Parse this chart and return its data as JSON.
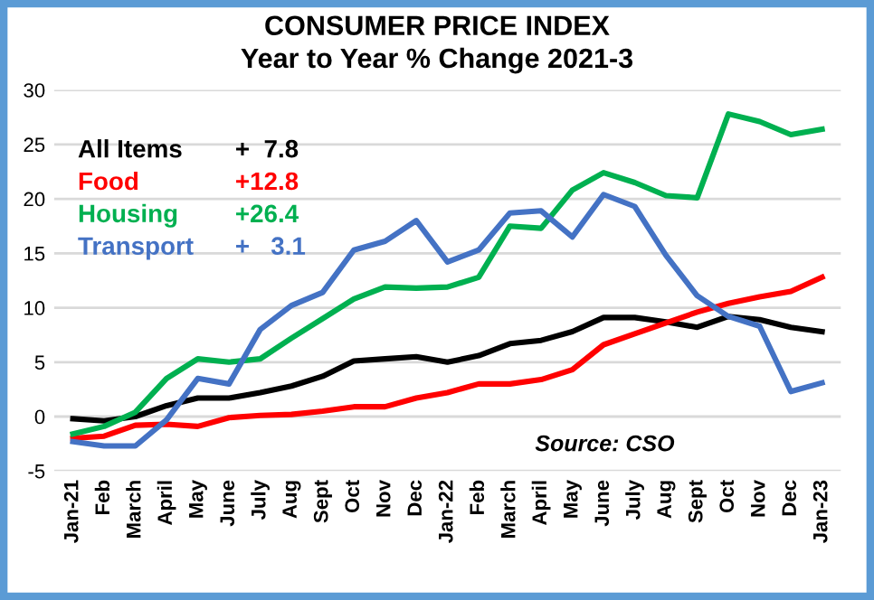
{
  "chart_data": {
    "type": "line",
    "title": "CONSUMER PRICE INDEX\nYear to Year % Change 2021-3",
    "categories": [
      "Jan-21",
      "Feb",
      "March",
      "April",
      "May",
      "June",
      "July",
      "Aug",
      "Sept",
      "Oct",
      "Nov",
      "Dec",
      "Jan-22",
      "Feb",
      "March",
      "April",
      "May",
      "June",
      "July",
      "Aug",
      "Sept",
      "Oct",
      "Nov",
      "Dec",
      "Jan-23"
    ],
    "series": [
      {
        "name": "All Items",
        "color": "#000000",
        "values": [
          -0.2,
          -0.4,
          0,
          1.0,
          1.7,
          1.7,
          2.2,
          2.8,
          3.7,
          5.1,
          5.3,
          5.5,
          5.0,
          5.6,
          6.7,
          7.0,
          7.8,
          9.1,
          9.1,
          8.7,
          8.2,
          9.2,
          8.9,
          8.2,
          7.8
        ]
      },
      {
        "name": "Food",
        "color": "#ff0000",
        "values": [
          -2.0,
          -1.8,
          -0.8,
          -0.7,
          -0.9,
          -0.1,
          0.1,
          0.2,
          0.5,
          0.9,
          0.9,
          1.7,
          2.2,
          3.0,
          3.0,
          3.4,
          4.3,
          6.6,
          7.6,
          8.6,
          9.6,
          10.4,
          11.0,
          11.5,
          12.8
        ]
      },
      {
        "name": "Housing",
        "color": "#00b050",
        "values": [
          -1.6,
          -0.9,
          0.4,
          3.5,
          5.3,
          5.0,
          5.3,
          7.2,
          9.0,
          10.8,
          11.9,
          11.8,
          11.9,
          12.8,
          17.5,
          17.3,
          20.8,
          22.4,
          21.5,
          20.3,
          20.1,
          27.8,
          27.1,
          25.9,
          26.4
        ]
      },
      {
        "name": "Transport",
        "color": "#4472c4",
        "values": [
          -2.3,
          -2.7,
          -2.7,
          -0.3,
          3.5,
          3.0,
          8.0,
          10.2,
          11.4,
          15.3,
          16.1,
          18.0,
          14.2,
          15.3,
          18.7,
          18.9,
          16.5,
          20.4,
          19.3,
          14.8,
          11.1,
          9.2,
          8.3,
          2.3,
          3.1
        ]
      }
    ],
    "annotations": [
      "+  7.8",
      "+12.8",
      "+26.4",
      "+   3.1",
      "Source: CSO"
    ],
    "ylim": [
      -5,
      30
    ],
    "yticks": [
      -5,
      0,
      5,
      10,
      15,
      20,
      25,
      30
    ],
    "grid": "y",
    "legend": "top left",
    "marker": "none",
    "line_style": "solid"
  }
}
